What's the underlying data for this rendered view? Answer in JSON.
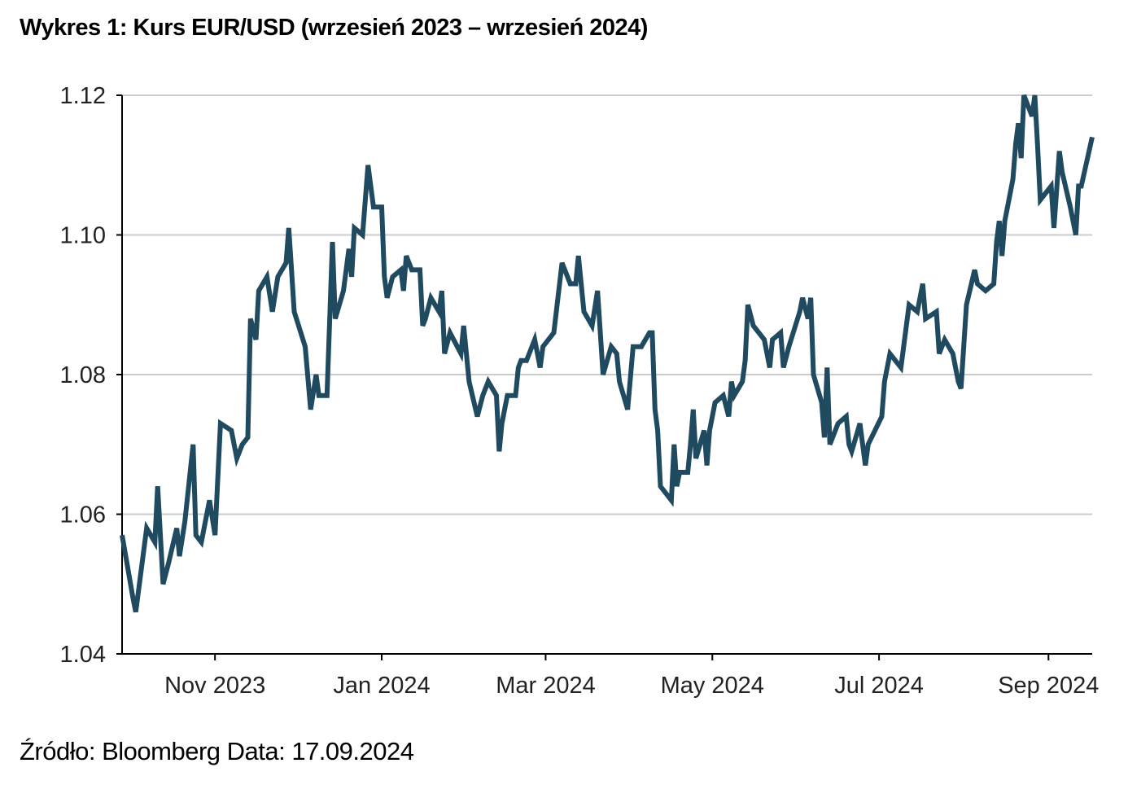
{
  "title": "Wykres 1: Kurs EUR/USD (wrzesień 2023 – wrzesień 2024)",
  "source": "Źródło: Bloomberg Data: 17.09.2024",
  "chart_data": {
    "type": "line",
    "title": "Wykres 1: Kurs EUR/USD (wrzesień 2023 – wrzesień 2024)",
    "xlabel": "",
    "ylabel": "",
    "xlim": [
      "2023-09-28",
      "2024-09-17"
    ],
    "ylim": [
      1.04,
      1.12
    ],
    "yticks": [
      1.04,
      1.06,
      1.08,
      1.1,
      1.12
    ],
    "ytick_labels": [
      "1.04",
      "1.06",
      "1.08",
      "1.10",
      "1.12"
    ],
    "xticks": [
      "2023-11-01",
      "2024-01-01",
      "2024-03-01",
      "2024-05-01",
      "2024-07-01",
      "2024-09-01"
    ],
    "xtick_labels": [
      "Nov 2023",
      "Jan 2024",
      "Mar 2024",
      "May 2024",
      "Jul 2024",
      "Sep 2024"
    ],
    "grid": "horizontal",
    "line_color": "#1f4a5f",
    "grid_color": "#cccccc",
    "series": [
      {
        "points": [
          [
            "2023-09-28",
            1.057
          ],
          [
            "2023-10-02",
            1.048
          ],
          [
            "2023-10-03",
            1.046
          ],
          [
            "2023-10-07",
            1.058
          ],
          [
            "2023-10-10",
            1.056
          ],
          [
            "2023-10-11",
            1.064
          ],
          [
            "2023-10-13",
            1.05
          ],
          [
            "2023-10-15",
            1.053
          ],
          [
            "2023-10-18",
            1.058
          ],
          [
            "2023-10-19",
            1.054
          ],
          [
            "2023-10-21",
            1.059
          ],
          [
            "2023-10-24",
            1.07
          ],
          [
            "2023-10-25",
            1.057
          ],
          [
            "2023-10-27",
            1.056
          ],
          [
            "2023-10-30",
            1.062
          ],
          [
            "2023-11-01",
            1.057
          ],
          [
            "2023-11-03",
            1.073
          ],
          [
            "2023-11-07",
            1.072
          ],
          [
            "2023-11-09",
            1.068
          ],
          [
            "2023-11-11",
            1.07
          ],
          [
            "2023-11-13",
            1.071
          ],
          [
            "2023-11-14",
            1.088
          ],
          [
            "2023-11-16",
            1.085
          ],
          [
            "2023-11-17",
            1.092
          ],
          [
            "2023-11-20",
            1.094
          ],
          [
            "2023-11-22",
            1.089
          ],
          [
            "2023-11-24",
            1.094
          ],
          [
            "2023-11-27",
            1.096
          ],
          [
            "2023-11-28",
            1.101
          ],
          [
            "2023-11-29",
            1.095
          ],
          [
            "2023-11-30",
            1.089
          ],
          [
            "2023-12-04",
            1.084
          ],
          [
            "2023-12-06",
            1.075
          ],
          [
            "2023-12-08",
            1.08
          ],
          [
            "2023-12-09",
            1.077
          ],
          [
            "2023-12-12",
            1.077
          ],
          [
            "2023-12-14",
            1.099
          ],
          [
            "2023-12-15",
            1.088
          ],
          [
            "2023-12-18",
            1.092
          ],
          [
            "2023-12-20",
            1.098
          ],
          [
            "2023-12-21",
            1.094
          ],
          [
            "2023-12-22",
            1.101
          ],
          [
            "2023-12-25",
            1.1
          ],
          [
            "2023-12-27",
            1.11
          ],
          [
            "2023-12-29",
            1.104
          ],
          [
            "2024-01-01",
            1.104
          ],
          [
            "2024-01-02",
            1.094
          ],
          [
            "2024-01-03",
            1.091
          ],
          [
            "2024-01-05",
            1.094
          ],
          [
            "2024-01-08",
            1.095
          ],
          [
            "2024-01-09",
            1.092
          ],
          [
            "2024-01-10",
            1.097
          ],
          [
            "2024-01-12",
            1.095
          ],
          [
            "2024-01-15",
            1.095
          ],
          [
            "2024-01-16",
            1.087
          ],
          [
            "2024-01-17",
            1.088
          ],
          [
            "2024-01-19",
            1.091
          ],
          [
            "2024-01-22",
            1.089
          ],
          [
            "2024-01-23",
            1.092
          ],
          [
            "2024-01-24",
            1.083
          ],
          [
            "2024-01-26",
            1.086
          ],
          [
            "2024-01-30",
            1.083
          ],
          [
            "2024-01-31",
            1.087
          ],
          [
            "2024-02-02",
            1.079
          ],
          [
            "2024-02-05",
            1.074
          ],
          [
            "2024-02-07",
            1.077
          ],
          [
            "2024-02-09",
            1.079
          ],
          [
            "2024-02-12",
            1.077
          ],
          [
            "2024-02-13",
            1.069
          ],
          [
            "2024-02-14",
            1.073
          ],
          [
            "2024-02-16",
            1.077
          ],
          [
            "2024-02-19",
            1.077
          ],
          [
            "2024-02-20",
            1.081
          ],
          [
            "2024-02-21",
            1.082
          ],
          [
            "2024-02-23",
            1.082
          ],
          [
            "2024-02-26",
            1.085
          ],
          [
            "2024-02-28",
            1.081
          ],
          [
            "2024-02-29",
            1.084
          ],
          [
            "2024-03-04",
            1.086
          ],
          [
            "2024-03-07",
            1.096
          ],
          [
            "2024-03-10",
            1.093
          ],
          [
            "2024-03-12",
            1.093
          ],
          [
            "2024-03-13",
            1.097
          ],
          [
            "2024-03-15",
            1.089
          ],
          [
            "2024-03-18",
            1.087
          ],
          [
            "2024-03-20",
            1.092
          ],
          [
            "2024-03-22",
            1.08
          ],
          [
            "2024-03-25",
            1.084
          ],
          [
            "2024-03-27",
            1.083
          ],
          [
            "2024-03-28",
            1.079
          ],
          [
            "2024-03-31",
            1.075
          ],
          [
            "2024-04-02",
            1.084
          ],
          [
            "2024-04-05",
            1.084
          ],
          [
            "2024-04-08",
            1.086
          ],
          [
            "2024-04-09",
            1.086
          ],
          [
            "2024-04-10",
            1.075
          ],
          [
            "2024-04-11",
            1.072
          ],
          [
            "2024-04-12",
            1.064
          ],
          [
            "2024-04-16",
            1.062
          ],
          [
            "2024-04-17",
            1.07
          ],
          [
            "2024-04-18",
            1.064
          ],
          [
            "2024-04-19",
            1.066
          ],
          [
            "2024-04-22",
            1.066
          ],
          [
            "2024-04-23",
            1.07
          ],
          [
            "2024-04-24",
            1.075
          ],
          [
            "2024-04-25",
            1.068
          ],
          [
            "2024-04-28",
            1.072
          ],
          [
            "2024-04-29",
            1.067
          ],
          [
            "2024-04-30",
            1.072
          ],
          [
            "2024-05-02",
            1.076
          ],
          [
            "2024-05-05",
            1.077
          ],
          [
            "2024-05-07",
            1.074
          ],
          [
            "2024-05-08",
            1.079
          ],
          [
            "2024-05-09",
            1.077
          ],
          [
            "2024-05-12",
            1.079
          ],
          [
            "2024-05-13",
            1.082
          ],
          [
            "2024-05-14",
            1.09
          ],
          [
            "2024-05-16",
            1.087
          ],
          [
            "2024-05-20",
            1.085
          ],
          [
            "2024-05-22",
            1.081
          ],
          [
            "2024-05-23",
            1.085
          ],
          [
            "2024-05-26",
            1.086
          ],
          [
            "2024-05-27",
            1.081
          ],
          [
            "2024-05-29",
            1.084
          ],
          [
            "2024-06-02",
            1.089
          ],
          [
            "2024-06-03",
            1.091
          ],
          [
            "2024-06-05",
            1.088
          ],
          [
            "2024-06-06",
            1.091
          ],
          [
            "2024-06-07",
            1.08
          ],
          [
            "2024-06-10",
            1.076
          ],
          [
            "2024-06-11",
            1.071
          ],
          [
            "2024-06-12",
            1.081
          ],
          [
            "2024-06-13",
            1.07
          ],
          [
            "2024-06-16",
            1.073
          ],
          [
            "2024-06-19",
            1.074
          ],
          [
            "2024-06-20",
            1.07
          ],
          [
            "2024-06-21",
            1.069
          ],
          [
            "2024-06-24",
            1.073
          ],
          [
            "2024-06-26",
            1.067
          ],
          [
            "2024-06-27",
            1.07
          ],
          [
            "2024-07-02",
            1.074
          ],
          [
            "2024-07-03",
            1.079
          ],
          [
            "2024-07-05",
            1.083
          ],
          [
            "2024-07-09",
            1.081
          ],
          [
            "2024-07-12",
            1.09
          ],
          [
            "2024-07-15",
            1.089
          ],
          [
            "2024-07-17",
            1.093
          ],
          [
            "2024-07-18",
            1.088
          ],
          [
            "2024-07-22",
            1.089
          ],
          [
            "2024-07-23",
            1.083
          ],
          [
            "2024-07-25",
            1.085
          ],
          [
            "2024-07-28",
            1.083
          ],
          [
            "2024-07-29",
            1.081
          ],
          [
            "2024-07-30",
            1.079
          ],
          [
            "2024-07-31",
            1.078
          ],
          [
            "2024-08-02",
            1.09
          ],
          [
            "2024-08-05",
            1.095
          ],
          [
            "2024-08-06",
            1.093
          ],
          [
            "2024-08-09",
            1.092
          ],
          [
            "2024-08-12",
            1.093
          ],
          [
            "2024-08-13",
            1.099
          ],
          [
            "2024-08-14",
            1.102
          ],
          [
            "2024-08-15",
            1.097
          ],
          [
            "2024-08-16",
            1.102
          ],
          [
            "2024-08-18",
            1.106
          ],
          [
            "2024-08-19",
            1.108
          ],
          [
            "2024-08-20",
            1.113
          ],
          [
            "2024-08-21",
            1.116
          ],
          [
            "2024-08-22",
            1.111
          ],
          [
            "2024-08-23",
            1.12
          ],
          [
            "2024-08-26",
            1.117
          ],
          [
            "2024-08-27",
            1.12
          ],
          [
            "2024-08-28",
            1.113
          ],
          [
            "2024-08-29",
            1.105
          ],
          [
            "2024-09-02",
            1.107
          ],
          [
            "2024-09-03",
            1.101
          ],
          [
            "2024-09-05",
            1.112
          ],
          [
            "2024-09-06",
            1.109
          ],
          [
            "2024-09-09",
            1.104
          ],
          [
            "2024-09-10",
            1.102
          ],
          [
            "2024-09-11",
            1.1
          ],
          [
            "2024-09-12",
            1.107
          ],
          [
            "2024-09-13",
            1.107
          ],
          [
            "2024-09-17",
            1.114
          ]
        ]
      }
    ]
  }
}
